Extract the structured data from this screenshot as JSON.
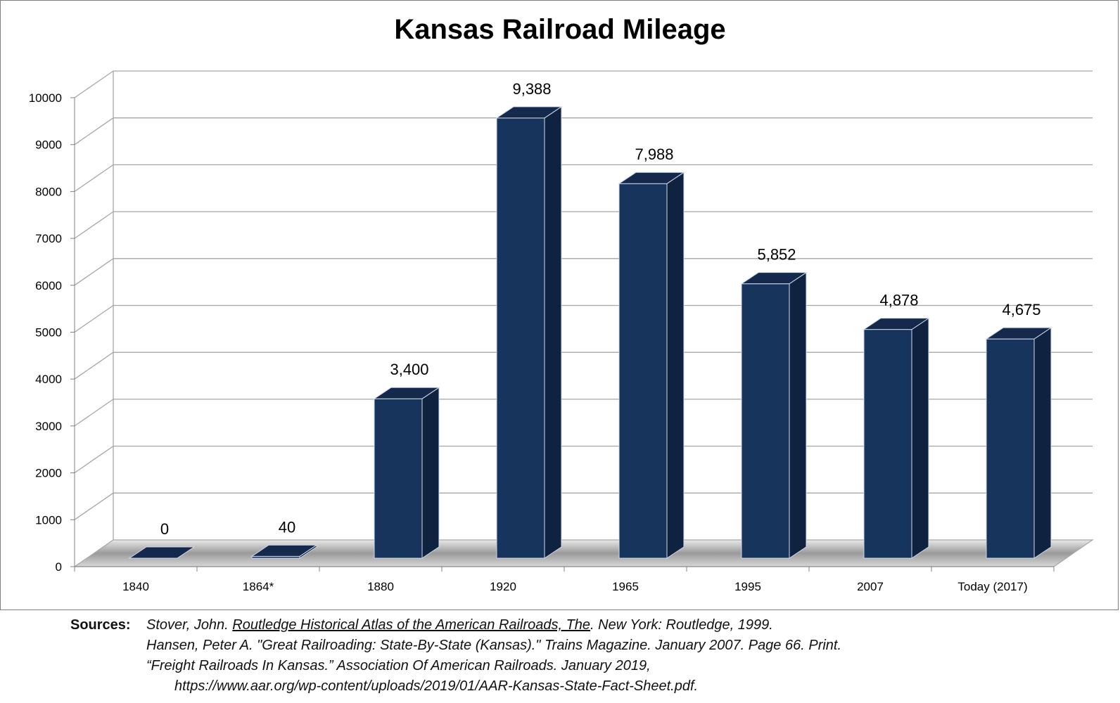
{
  "chart_data": {
    "type": "bar",
    "title": "Kansas Railroad Mileage",
    "categories": [
      "1840",
      "1864*",
      "1880",
      "1920",
      "1965",
      "1995",
      "2007",
      "Today (2017)"
    ],
    "values": [
      0,
      40,
      3400,
      9388,
      7988,
      5852,
      4878,
      4675
    ],
    "value_labels": [
      "0",
      "40",
      "3,400",
      "9,388",
      "7,988",
      "5,852",
      "4,878",
      "4,675"
    ],
    "yticks": [
      "0",
      "1000",
      "2000",
      "3000",
      "4000",
      "5000",
      "6000",
      "7000",
      "8000",
      "9000",
      "10000"
    ],
    "ylim": [
      0,
      10000
    ],
    "grid": true,
    "style": "3d",
    "colors": {
      "bar_front": "#17345d",
      "bar_side": "#0f2340",
      "bar_top": "#14294b",
      "grid": "#a6a6a6",
      "floor": "#b0b0b0"
    }
  },
  "sources": {
    "label": "Sources:",
    "line1_a": "Stover, John. ",
    "line1_u": "Routledge Historical Atlas of the American Railroads, The",
    "line1_b": ". New York: Routledge, 1999.",
    "line2": "Hansen, Peter A. \"Great Railroading: State-By-State (Kansas).\" Trains Magazine. January 2007. Page 66. Print.",
    "line3": "“Freight Railroads In Kansas.” Association Of American Railroads. January 2019,",
    "line4": "https://www.aar.org/wp-content/uploads/2019/01/AAR-Kansas-State-Fact-Sheet.pdf."
  }
}
